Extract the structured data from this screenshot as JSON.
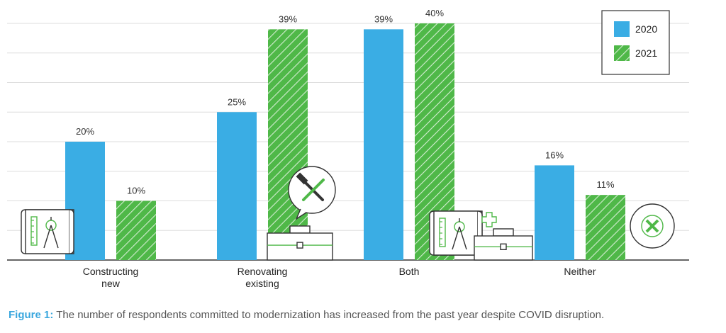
{
  "chart_data": {
    "type": "bar",
    "categories": [
      "Constructing\nnew",
      "Renovating\nexisting",
      "Both",
      "Neither"
    ],
    "series": [
      {
        "name": "2020",
        "values": [
          20,
          25,
          39,
          16
        ],
        "color": "#3aade4",
        "pattern": "solid"
      },
      {
        "name": "2021",
        "values": [
          10,
          39,
          40,
          11
        ],
        "color": "#4fb848",
        "pattern": "hatched"
      }
    ],
    "value_labels": [
      [
        "20%",
        "25%",
        "39%",
        "16%"
      ],
      [
        "10%",
        "39%",
        "40%",
        "11%"
      ]
    ],
    "ylim": [
      0,
      40
    ],
    "grid": true,
    "legend_position": "top-right",
    "category_icons": [
      "blueprint-icon",
      "tools-toolbox-icon",
      "blueprint-toolbox-icon",
      "cancel-icon"
    ]
  },
  "caption": {
    "label": "Figure 1:",
    "text": " The number of respondents committed to modernization has increased from the past year despite COVID disruption."
  }
}
